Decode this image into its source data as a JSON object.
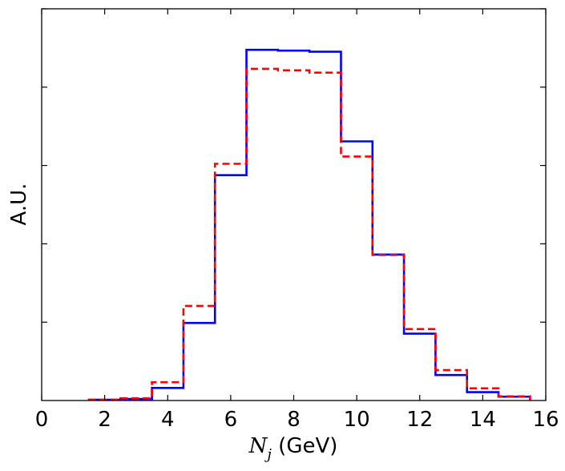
{
  "chart_data": {
    "type": "line",
    "subtype": "step-histogram",
    "xlabel": {
      "symbol": "N",
      "subscript": "j",
      "unit": " (GeV)"
    },
    "ylabel": "A.U.",
    "xlim": [
      0,
      16
    ],
    "ylim": [
      0,
      1.0
    ],
    "x_ticks": [
      0,
      2,
      4,
      6,
      8,
      10,
      12,
      14,
      16
    ],
    "y_ticks_labeled": false,
    "grid": false,
    "legend": "none",
    "bin_edges": [
      1.5,
      2.5,
      3.5,
      4.5,
      5.5,
      6.5,
      7.5,
      8.5,
      9.5,
      10.5,
      11.5,
      12.5,
      13.5,
      14.5,
      15.5
    ],
    "series": [
      {
        "style": "solid",
        "color": "#0000ff",
        "values": [
          0.002,
          0.004,
          0.033,
          0.204,
          0.593,
          0.923,
          0.921,
          0.918,
          0.682,
          0.384,
          0.176,
          0.067,
          0.022,
          0.01
        ]
      },
      {
        "style": "dashed",
        "color": "#ff0000",
        "values": [
          0.002,
          0.006,
          0.048,
          0.249,
          0.623,
          0.873,
          0.869,
          0.863,
          0.642,
          0.383,
          0.188,
          0.08,
          0.032,
          0.011
        ]
      }
    ]
  }
}
